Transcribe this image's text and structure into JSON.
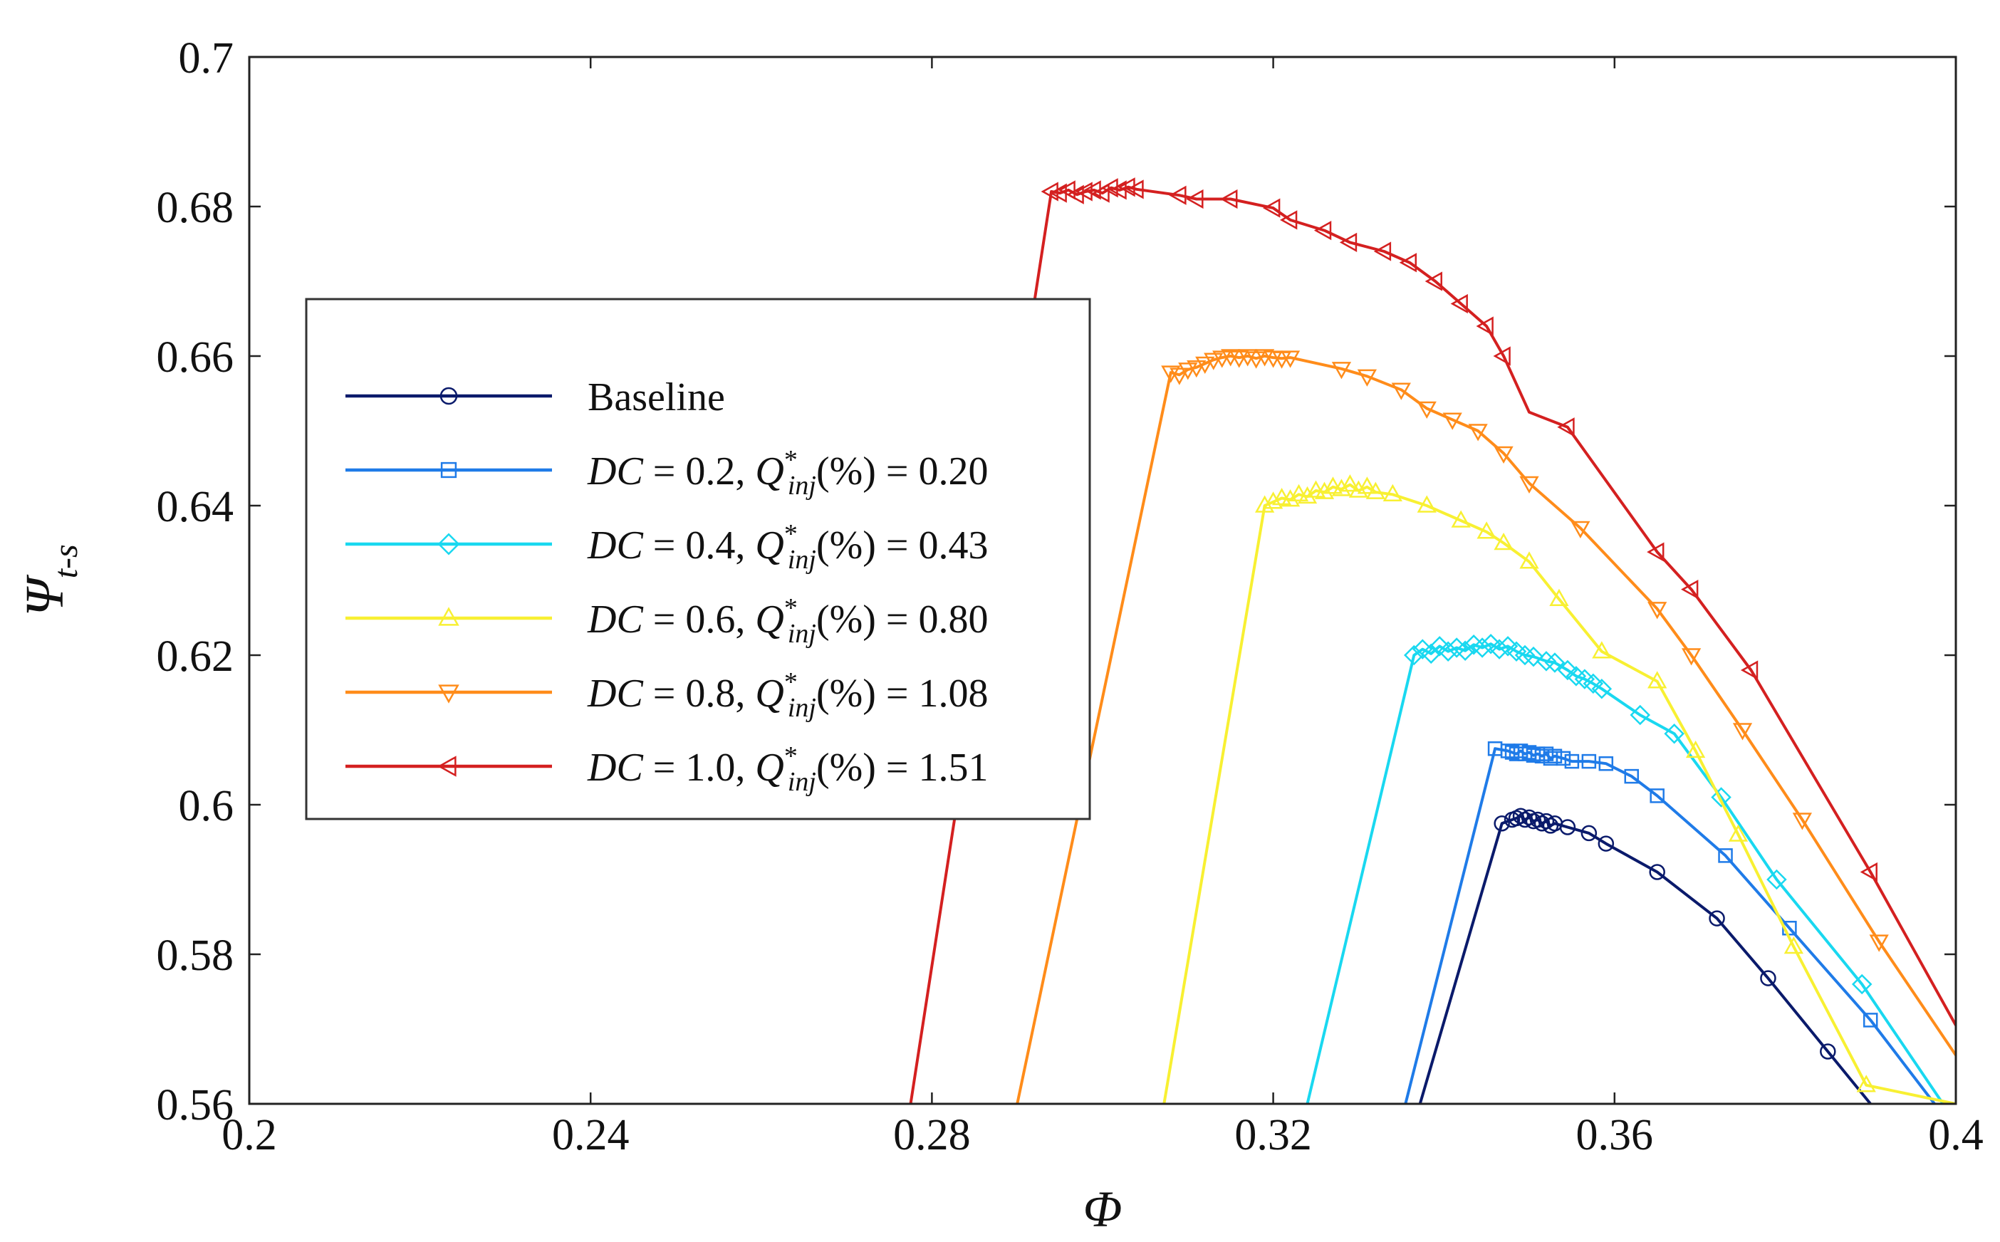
{
  "chart_data": {
    "type": "line",
    "title": "",
    "xlabel": "Φ",
    "ylabel": "Ψ",
    "ylabel_sub": "t-s",
    "xlim": [
      0.2,
      0.4
    ],
    "ylim": [
      0.56,
      0.7
    ],
    "x_ticks": [
      0.2,
      0.24,
      0.28,
      0.32,
      0.36,
      0.4
    ],
    "x_tick_labels": [
      "0.2",
      "0.24",
      "0.28",
      "0.32",
      "0.36",
      "0.4"
    ],
    "y_ticks": [
      0.56,
      0.58,
      0.6,
      0.62,
      0.64,
      0.66,
      0.68,
      0.7
    ],
    "y_tick_labels": [
      "0.56",
      "0.58",
      "0.6",
      "0.62",
      "0.64",
      "0.66",
      "0.68",
      "0.7"
    ],
    "grid": false,
    "legend_position": "center-left",
    "series": [
      {
        "name": "Baseline",
        "legend_main": "Baseline",
        "legend_dc": "",
        "legend_q": "",
        "color": "#0a1a6b",
        "marker": "circle",
        "x": [
          0.3372,
          0.3468,
          0.348,
          0.3485,
          0.349,
          0.3495,
          0.35,
          0.3505,
          0.351,
          0.3515,
          0.352,
          0.3525,
          0.353,
          0.3545,
          0.357,
          0.359,
          0.365,
          0.372,
          0.378,
          0.385,
          0.39
        ],
        "y": [
          0.56,
          0.5975,
          0.598,
          0.5982,
          0.5985,
          0.598,
          0.5983,
          0.5978,
          0.598,
          0.5975,
          0.5978,
          0.5972,
          0.5975,
          0.597,
          0.5962,
          0.5948,
          0.591,
          0.5848,
          0.5768,
          0.567,
          0.56
        ],
        "markers_x": [
          0.3468,
          0.348,
          0.3485,
          0.349,
          0.3495,
          0.35,
          0.3505,
          0.351,
          0.3515,
          0.352,
          0.3525,
          0.353,
          0.3545,
          0.357,
          0.359,
          0.365,
          0.372,
          0.378,
          0.385
        ]
      },
      {
        "name": "DC = 0.2, Q*inj(%) = 0.20",
        "legend_main": "",
        "legend_dc": "0.2",
        "legend_q": "0.20",
        "color": "#1f7be8",
        "marker": "square",
        "x": [
          0.3355,
          0.346,
          0.3475,
          0.348,
          0.3485,
          0.349,
          0.3495,
          0.35,
          0.3505,
          0.351,
          0.3515,
          0.352,
          0.3525,
          0.353,
          0.354,
          0.355,
          0.357,
          0.359,
          0.362,
          0.365,
          0.373,
          0.3805,
          0.39,
          0.3975
        ],
        "y": [
          0.56,
          0.6075,
          0.6072,
          0.607,
          0.6068,
          0.6072,
          0.6068,
          0.607,
          0.6066,
          0.6068,
          0.6065,
          0.6068,
          0.6062,
          0.6065,
          0.6062,
          0.6058,
          0.6058,
          0.6055,
          0.6038,
          0.6012,
          0.5932,
          0.5835,
          0.5712,
          0.56
        ],
        "markers_x": [
          0.346,
          0.3475,
          0.348,
          0.3485,
          0.349,
          0.3495,
          0.35,
          0.3505,
          0.351,
          0.3515,
          0.352,
          0.3525,
          0.353,
          0.354,
          0.355,
          0.357,
          0.359,
          0.362,
          0.365,
          0.373,
          0.3805,
          0.39
        ]
      },
      {
        "name": "DC = 0.4, Q*inj(%) = 0.43",
        "legend_main": "",
        "legend_dc": "0.4",
        "legend_q": "0.43",
        "color": "#19d8f0",
        "marker": "diamond",
        "x": [
          0.324,
          0.3365,
          0.3375,
          0.3385,
          0.3395,
          0.3405,
          0.3415,
          0.3425,
          0.3435,
          0.3445,
          0.3455,
          0.3465,
          0.3475,
          0.3485,
          0.3495,
          0.3505,
          0.352,
          0.353,
          0.3545,
          0.3555,
          0.3565,
          0.3575,
          0.3585,
          0.363,
          0.367,
          0.3725,
          0.379,
          0.389,
          0.3985
        ],
        "y": [
          0.56,
          0.62,
          0.6208,
          0.6202,
          0.6212,
          0.6205,
          0.621,
          0.6206,
          0.6214,
          0.621,
          0.6215,
          0.6208,
          0.6212,
          0.6205,
          0.62,
          0.6198,
          0.6192,
          0.619,
          0.618,
          0.6172,
          0.6168,
          0.6162,
          0.6155,
          0.612,
          0.6095,
          0.601,
          0.59,
          0.576,
          0.56
        ],
        "markers_x": [
          0.3365,
          0.3375,
          0.3385,
          0.3395,
          0.3405,
          0.3415,
          0.3425,
          0.3435,
          0.3445,
          0.3455,
          0.3465,
          0.3475,
          0.3485,
          0.3495,
          0.3505,
          0.352,
          0.353,
          0.3545,
          0.3555,
          0.3565,
          0.3575,
          0.3585,
          0.363,
          0.367,
          0.3725,
          0.379,
          0.389
        ]
      },
      {
        "name": "DC = 0.6, Q*inj(%) = 0.80",
        "legend_main": "",
        "legend_dc": "0.6",
        "legend_q": "0.80",
        "color": "#f8f032",
        "marker": "triangle-up",
        "x": [
          0.3072,
          0.319,
          0.32,
          0.321,
          0.322,
          0.323,
          0.324,
          0.325,
          0.326,
          0.327,
          0.328,
          0.329,
          0.33,
          0.331,
          0.332,
          0.334,
          0.338,
          0.342,
          0.345,
          0.347,
          0.35,
          0.3535,
          0.3585,
          0.365,
          0.3695,
          0.3745,
          0.381,
          0.3895,
          0.4
        ],
        "y": [
          0.56,
          0.64,
          0.6405,
          0.641,
          0.6408,
          0.6415,
          0.6412,
          0.642,
          0.6418,
          0.6425,
          0.6422,
          0.6428,
          0.642,
          0.6425,
          0.6418,
          0.6415,
          0.64,
          0.638,
          0.6365,
          0.635,
          0.6325,
          0.6275,
          0.6205,
          0.6165,
          0.6072,
          0.596,
          0.581,
          0.5625,
          0.56
        ],
        "markers_x": [
          0.319,
          0.32,
          0.321,
          0.322,
          0.323,
          0.324,
          0.325,
          0.326,
          0.327,
          0.328,
          0.329,
          0.33,
          0.331,
          0.332,
          0.334,
          0.338,
          0.342,
          0.345,
          0.347,
          0.35,
          0.3535,
          0.3585,
          0.365,
          0.3695,
          0.3745,
          0.381,
          0.3895
        ]
      },
      {
        "name": "DC = 0.8, Q*inj(%) = 1.08",
        "legend_main": "",
        "legend_dc": "0.8",
        "legend_q": "1.08",
        "color": "#ff8c1a",
        "marker": "triangle-down",
        "x": [
          0.29,
          0.308,
          0.309,
          0.31,
          0.311,
          0.312,
          0.313,
          0.314,
          0.315,
          0.316,
          0.317,
          0.318,
          0.319,
          0.32,
          0.321,
          0.322,
          0.328,
          0.331,
          0.335,
          0.338,
          0.341,
          0.344,
          0.347,
          0.35,
          0.356,
          0.365,
          0.369,
          0.375,
          0.382,
          0.391,
          0.4
        ],
        "y": [
          0.56,
          0.6578,
          0.6575,
          0.6582,
          0.6585,
          0.659,
          0.6595,
          0.6598,
          0.66,
          0.6598,
          0.66,
          0.6597,
          0.66,
          0.6598,
          0.6597,
          0.6598,
          0.6583,
          0.6573,
          0.6555,
          0.653,
          0.6515,
          0.65,
          0.647,
          0.643,
          0.637,
          0.6262,
          0.62,
          0.61,
          0.598,
          0.5817,
          0.5665
        ],
        "markers_x": [
          0.308,
          0.309,
          0.31,
          0.311,
          0.312,
          0.313,
          0.314,
          0.315,
          0.316,
          0.317,
          0.318,
          0.319,
          0.32,
          0.321,
          0.322,
          0.328,
          0.331,
          0.335,
          0.338,
          0.341,
          0.344,
          0.347,
          0.35,
          0.356,
          0.365,
          0.369,
          0.375,
          0.382,
          0.391
        ]
      },
      {
        "name": "DC = 1.0, Q*inj(%) = 1.51",
        "legend_main": "",
        "legend_dc": "1.0",
        "legend_q": "1.51",
        "color": "#d42020",
        "marker": "triangle-left",
        "x": [
          0.2775,
          0.294,
          0.295,
          0.296,
          0.297,
          0.298,
          0.299,
          0.3,
          0.301,
          0.302,
          0.303,
          0.304,
          0.309,
          0.311,
          0.315,
          0.32,
          0.322,
          0.326,
          0.329,
          0.333,
          0.336,
          0.339,
          0.342,
          0.345,
          0.347,
          0.35,
          0.3545,
          0.365,
          0.369,
          0.376,
          0.39,
          0.4
        ],
        "y": [
          0.56,
          0.682,
          0.6818,
          0.6822,
          0.6816,
          0.682,
          0.6822,
          0.6818,
          0.6825,
          0.6822,
          0.6826,
          0.6823,
          0.6815,
          0.681,
          0.681,
          0.6798,
          0.6782,
          0.6768,
          0.6752,
          0.674,
          0.6725,
          0.67,
          0.667,
          0.664,
          0.66,
          0.6525,
          0.6505,
          0.6338,
          0.6288,
          0.618,
          0.591,
          0.5705
        ],
        "markers_x": [
          0.294,
          0.295,
          0.296,
          0.297,
          0.298,
          0.299,
          0.3,
          0.301,
          0.302,
          0.303,
          0.304,
          0.309,
          0.311,
          0.315,
          0.32,
          0.322,
          0.326,
          0.329,
          0.333,
          0.336,
          0.339,
          0.342,
          0.345,
          0.347,
          0.3545,
          0.365,
          0.369,
          0.376,
          0.39
        ]
      }
    ],
    "legend_template": {
      "dc": "DC",
      "eq": " = ",
      "sep": ", ",
      "q": "Q",
      "q_sup": "*",
      "q_sub": "inj",
      "pct": "(%) = "
    }
  }
}
